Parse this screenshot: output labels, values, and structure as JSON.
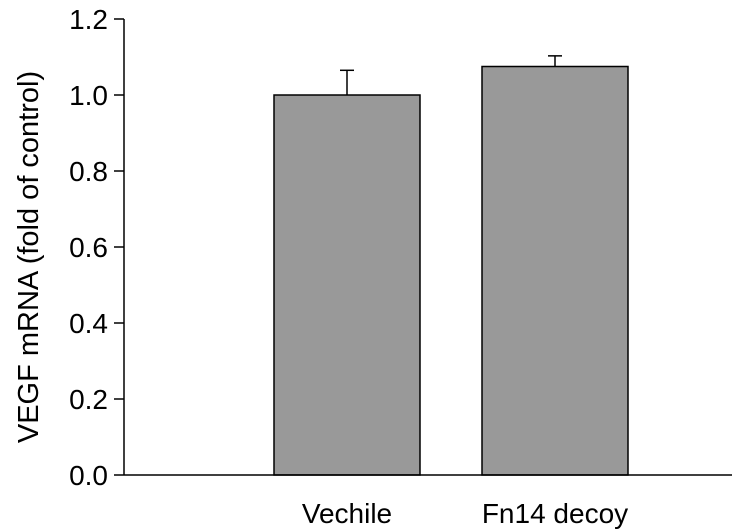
{
  "chart_data": {
    "type": "bar",
    "categories": [
      "Vechile",
      "Fn14 decoy"
    ],
    "series": [
      {
        "values": [
          1.0,
          1.075
        ],
        "error": [
          0.065,
          0.028
        ]
      }
    ],
    "ylabel": "VEGF mRNA (fold of control)",
    "xlabel": "",
    "ylim": [
      0,
      1.2
    ],
    "yticks": [
      "0.0",
      "0.2",
      "0.4",
      "0.6",
      "0.8",
      "1.0",
      "1.2"
    ],
    "grid": false,
    "bar_color": "#999999",
    "edge_color": "#000000"
  }
}
